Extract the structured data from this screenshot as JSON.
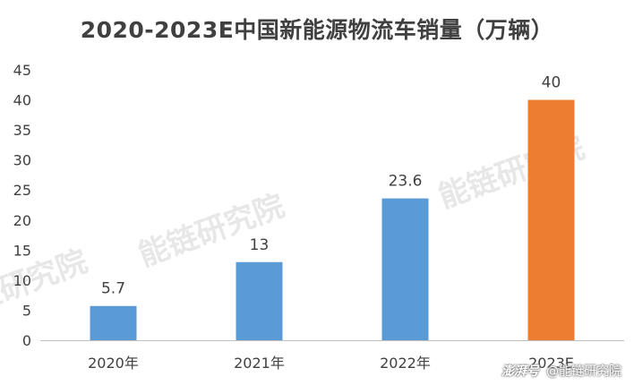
{
  "title": "2020-2023E中国新能源物流车销量（万辆）",
  "chart_data": {
    "type": "bar",
    "categories": [
      "2020年",
      "2021年",
      "2022年",
      "2023E"
    ],
    "values": [
      5.7,
      13,
      23.6,
      40
    ],
    "data_labels": [
      "5.7",
      "13",
      "23.6",
      "40"
    ],
    "ylim": [
      0,
      45
    ],
    "yticks": [
      0,
      5,
      10,
      15,
      20,
      25,
      30,
      35,
      40,
      45
    ],
    "grid": false,
    "colors": [
      "#5b9bd5",
      "#5b9bd5",
      "#5b9bd5",
      "#ed7d31"
    ]
  },
  "watermark": "能链研究院",
  "credit": {
    "brand": "澎湃号",
    "author": "@能链研究院"
  }
}
